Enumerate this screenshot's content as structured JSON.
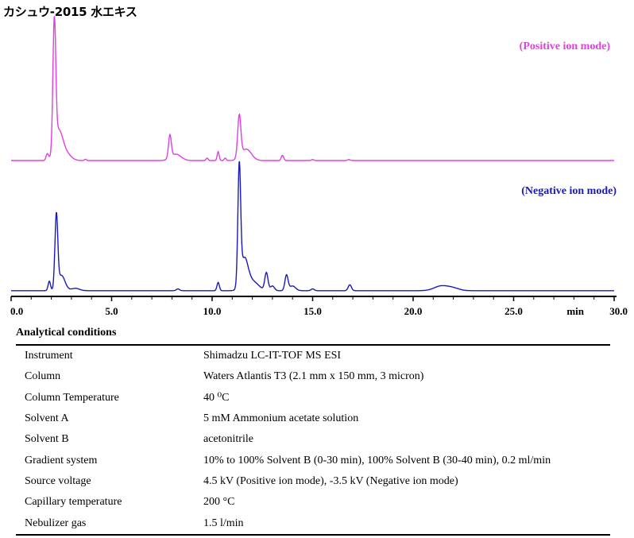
{
  "title": "カシュウ-2015 水エキス",
  "chart_data": {
    "type": "line",
    "xlabel": "min",
    "xlim": [
      0,
      30
    ],
    "x_ticks": [
      "0.0",
      "5.0",
      "10.0",
      "15.0",
      "20.0",
      "25.0",
      "30.0"
    ],
    "series": [
      {
        "name": "(Positive ion mode)",
        "color": "#e040e0",
        "baseline": 0.0,
        "peaks": [
          {
            "rt": 1.8,
            "h": 0.05,
            "w": 0.06
          },
          {
            "rt": 2.15,
            "h": 1.0,
            "w": 0.07
          },
          {
            "rt": 2.35,
            "h": 0.22,
            "w": 0.2
          },
          {
            "rt": 2.7,
            "h": 0.06,
            "w": 0.25
          },
          {
            "rt": 3.7,
            "h": 0.01,
            "w": 0.05
          },
          {
            "rt": 7.9,
            "h": 0.18,
            "w": 0.07
          },
          {
            "rt": 8.2,
            "h": 0.05,
            "w": 0.25
          },
          {
            "rt": 9.75,
            "h": 0.02,
            "w": 0.05
          },
          {
            "rt": 10.3,
            "h": 0.07,
            "w": 0.05
          },
          {
            "rt": 10.65,
            "h": 0.02,
            "w": 0.05
          },
          {
            "rt": 11.35,
            "h": 0.33,
            "w": 0.08
          },
          {
            "rt": 11.7,
            "h": 0.09,
            "w": 0.25
          },
          {
            "rt": 13.5,
            "h": 0.04,
            "w": 0.06
          },
          {
            "rt": 15.0,
            "h": 0.008,
            "w": 0.06
          },
          {
            "rt": 16.8,
            "h": 0.008,
            "w": 0.06
          }
        ]
      },
      {
        "name": "(Negative ion mode)",
        "color": "#1a1ab8",
        "baseline": 0.015,
        "peaks": [
          {
            "rt": 1.9,
            "h": 0.08,
            "w": 0.06
          },
          {
            "rt": 2.25,
            "h": 0.62,
            "w": 0.07
          },
          {
            "rt": 2.5,
            "h": 0.13,
            "w": 0.18
          },
          {
            "rt": 3.2,
            "h": 0.02,
            "w": 0.2
          },
          {
            "rt": 8.3,
            "h": 0.015,
            "w": 0.08
          },
          {
            "rt": 10.3,
            "h": 0.07,
            "w": 0.06
          },
          {
            "rt": 11.35,
            "h": 1.0,
            "w": 0.07
          },
          {
            "rt": 11.6,
            "h": 0.25,
            "w": 0.18
          },
          {
            "rt": 12.0,
            "h": 0.08,
            "w": 0.3
          },
          {
            "rt": 12.7,
            "h": 0.15,
            "w": 0.08
          },
          {
            "rt": 13.0,
            "h": 0.04,
            "w": 0.1
          },
          {
            "rt": 13.7,
            "h": 0.13,
            "w": 0.08
          },
          {
            "rt": 14.0,
            "h": 0.04,
            "w": 0.15
          },
          {
            "rt": 15.0,
            "h": 0.015,
            "w": 0.08
          },
          {
            "rt": 16.85,
            "h": 0.05,
            "w": 0.08
          },
          {
            "rt": 21.4,
            "h": 0.04,
            "w": 0.35
          },
          {
            "rt": 22.0,
            "h": 0.02,
            "w": 0.3
          }
        ]
      }
    ]
  },
  "conditions": {
    "heading": "Analytical conditions",
    "rows": [
      {
        "label": "Instrument",
        "value": "Shimadzu LC-IT-TOF MS ESI"
      },
      {
        "label": "Column",
        "value": "Waters Atlantis T3 (2.1 mm x 150 mm, 3 micron)"
      },
      {
        "label": "Column Temperature",
        "value": "40 ⁰C"
      },
      {
        "label": "Solvent A",
        "value": "5 mM Ammonium acetate solution"
      },
      {
        "label": "Solvent B",
        "value": "acetonitrile"
      },
      {
        "label": "Gradient system",
        "value": "10% to 100% Solvent B (0-30 min), 100% Solvent B (30-40 min), 0.2 ml/min"
      },
      {
        "label": "Source voltage",
        "value": "4.5 kV (Positive ion mode), -3.5 kV (Negative ion mode)"
      },
      {
        "label": "Capillary temperature",
        "value": "200 °C"
      },
      {
        "label": "Nebulizer gas",
        "value": "1.5 l/min"
      }
    ]
  }
}
